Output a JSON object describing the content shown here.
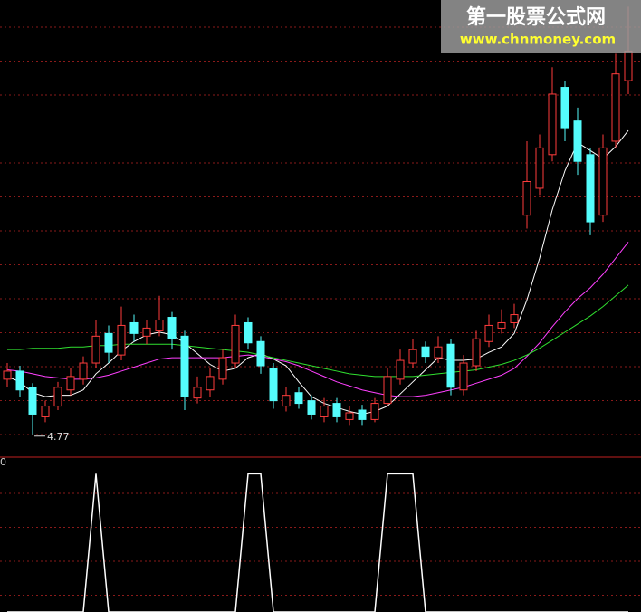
{
  "chart_data": [
    {
      "type": "candlestick",
      "annotation": "4.77",
      "watermark_title": "第一股票公式网",
      "watermark_url": "www.chnmoney.com",
      "ylim": [
        4.6,
        8.0
      ],
      "up_color": "#ff3c3c",
      "down_color": "#54fcfc",
      "open": [
        5.18,
        5.24,
        5.12,
        4.9,
        4.98,
        5.1,
        5.18,
        5.3,
        5.52,
        5.36,
        5.6,
        5.5,
        5.54,
        5.64,
        5.5,
        5.04,
        5.1,
        5.18,
        5.3,
        5.6,
        5.46,
        5.26,
        4.98,
        5.08,
        5.02,
        4.9,
        5.0,
        4.88,
        4.95,
        4.88,
        5.0,
        5.18,
        5.3,
        5.42,
        5.34,
        5.44,
        5.1,
        5.28,
        5.46,
        5.56,
        5.6,
        6.4,
        6.6,
        6.85,
        7.35,
        7.1,
        6.85,
        6.4,
        6.95,
        7.4
      ],
      "high": [
        5.3,
        5.28,
        5.15,
        5.02,
        5.16,
        5.26,
        5.35,
        5.62,
        5.58,
        5.72,
        5.66,
        5.62,
        5.8,
        5.68,
        5.54,
        5.2,
        5.26,
        5.4,
        5.66,
        5.64,
        5.5,
        5.3,
        5.12,
        5.12,
        5.06,
        5.04,
        5.04,
        4.98,
        4.99,
        5.04,
        5.26,
        5.4,
        5.48,
        5.46,
        5.5,
        5.48,
        5.36,
        5.54,
        5.66,
        5.7,
        5.74,
        6.95,
        7.0,
        7.5,
        7.4,
        7.2,
        6.9,
        7.0,
        7.6,
        7.95
      ],
      "low": [
        5.12,
        5.05,
        4.77,
        4.86,
        4.95,
        5.06,
        5.14,
        5.26,
        5.3,
        5.32,
        5.46,
        5.44,
        5.5,
        5.4,
        4.95,
        5.0,
        5.05,
        5.14,
        5.26,
        5.4,
        5.22,
        4.96,
        4.94,
        4.96,
        4.88,
        4.86,
        4.86,
        4.84,
        4.84,
        4.86,
        4.98,
        5.14,
        5.26,
        5.3,
        5.3,
        5.06,
        5.06,
        5.24,
        5.42,
        5.52,
        5.56,
        6.3,
        6.55,
        6.8,
        6.95,
        6.7,
        6.25,
        6.35,
        6.9,
        7.3
      ],
      "close": [
        5.24,
        5.1,
        4.92,
        4.98,
        5.12,
        5.2,
        5.3,
        5.5,
        5.38,
        5.58,
        5.52,
        5.56,
        5.62,
        5.48,
        5.05,
        5.12,
        5.2,
        5.34,
        5.58,
        5.45,
        5.28,
        5.02,
        5.06,
        5.0,
        4.92,
        4.98,
        4.9,
        4.93,
        4.88,
        5.0,
        5.2,
        5.32,
        5.4,
        5.35,
        5.42,
        5.12,
        5.3,
        5.48,
        5.58,
        5.6,
        5.66,
        6.65,
        6.9,
        7.3,
        7.05,
        6.8,
        6.35,
        6.9,
        7.45,
        7.62
      ],
      "series": [
        {
          "color": "#ffffff",
          "values": [
            5.2,
            5.16,
            5.08,
            5.05,
            5.06,
            5.06,
            5.1,
            5.22,
            5.3,
            5.39,
            5.46,
            5.51,
            5.53,
            5.51,
            5.45,
            5.37,
            5.29,
            5.24,
            5.26,
            5.34,
            5.37,
            5.33,
            5.28,
            5.16,
            5.05,
            5.0,
            4.97,
            4.94,
            4.92,
            4.94,
            4.98,
            5.07,
            5.16,
            5.25,
            5.34,
            5.32,
            5.32,
            5.33,
            5.38,
            5.42,
            5.52,
            5.77,
            6.08,
            6.44,
            6.73,
            6.94,
            6.88,
            6.82,
            6.91,
            7.03
          ]
        },
        {
          "color": "#ff40ff",
          "values": [
            5.25,
            5.24,
            5.22,
            5.2,
            5.19,
            5.18,
            5.18,
            5.19,
            5.21,
            5.24,
            5.27,
            5.3,
            5.33,
            5.34,
            5.34,
            5.34,
            5.34,
            5.34,
            5.35,
            5.36,
            5.35,
            5.33,
            5.31,
            5.28,
            5.24,
            5.2,
            5.16,
            5.13,
            5.1,
            5.08,
            5.06,
            5.05,
            5.05,
            5.06,
            5.08,
            5.1,
            5.12,
            5.15,
            5.18,
            5.21,
            5.26,
            5.35,
            5.45,
            5.57,
            5.68,
            5.78,
            5.86,
            5.96,
            6.08,
            6.2
          ]
        },
        {
          "color": "#30e030",
          "values": [
            5.4,
            5.4,
            5.41,
            5.41,
            5.41,
            5.42,
            5.42,
            5.43,
            5.43,
            5.44,
            5.44,
            5.44,
            5.44,
            5.44,
            5.43,
            5.42,
            5.41,
            5.4,
            5.39,
            5.38,
            5.36,
            5.34,
            5.32,
            5.3,
            5.28,
            5.26,
            5.24,
            5.22,
            5.21,
            5.2,
            5.2,
            5.2,
            5.2,
            5.21,
            5.22,
            5.23,
            5.24,
            5.25,
            5.27,
            5.29,
            5.32,
            5.36,
            5.41,
            5.47,
            5.53,
            5.59,
            5.65,
            5.72,
            5.8,
            5.88
          ]
        }
      ]
    },
    {
      "type": "line",
      "axis_label": "0",
      "ylim": [
        0,
        1.12
      ],
      "color": "#ffffff",
      "values": [
        0,
        0,
        0,
        0,
        0,
        0,
        0,
        1,
        0,
        0,
        0,
        0,
        0,
        0,
        0,
        0,
        0,
        0,
        0,
        1,
        1,
        0,
        0,
        0,
        0,
        0,
        0,
        0,
        0,
        0,
        1,
        1,
        1,
        0,
        0,
        0,
        0,
        0,
        0,
        0,
        0,
        0,
        0,
        0,
        0,
        0,
        0,
        0,
        0,
        0
      ]
    }
  ]
}
